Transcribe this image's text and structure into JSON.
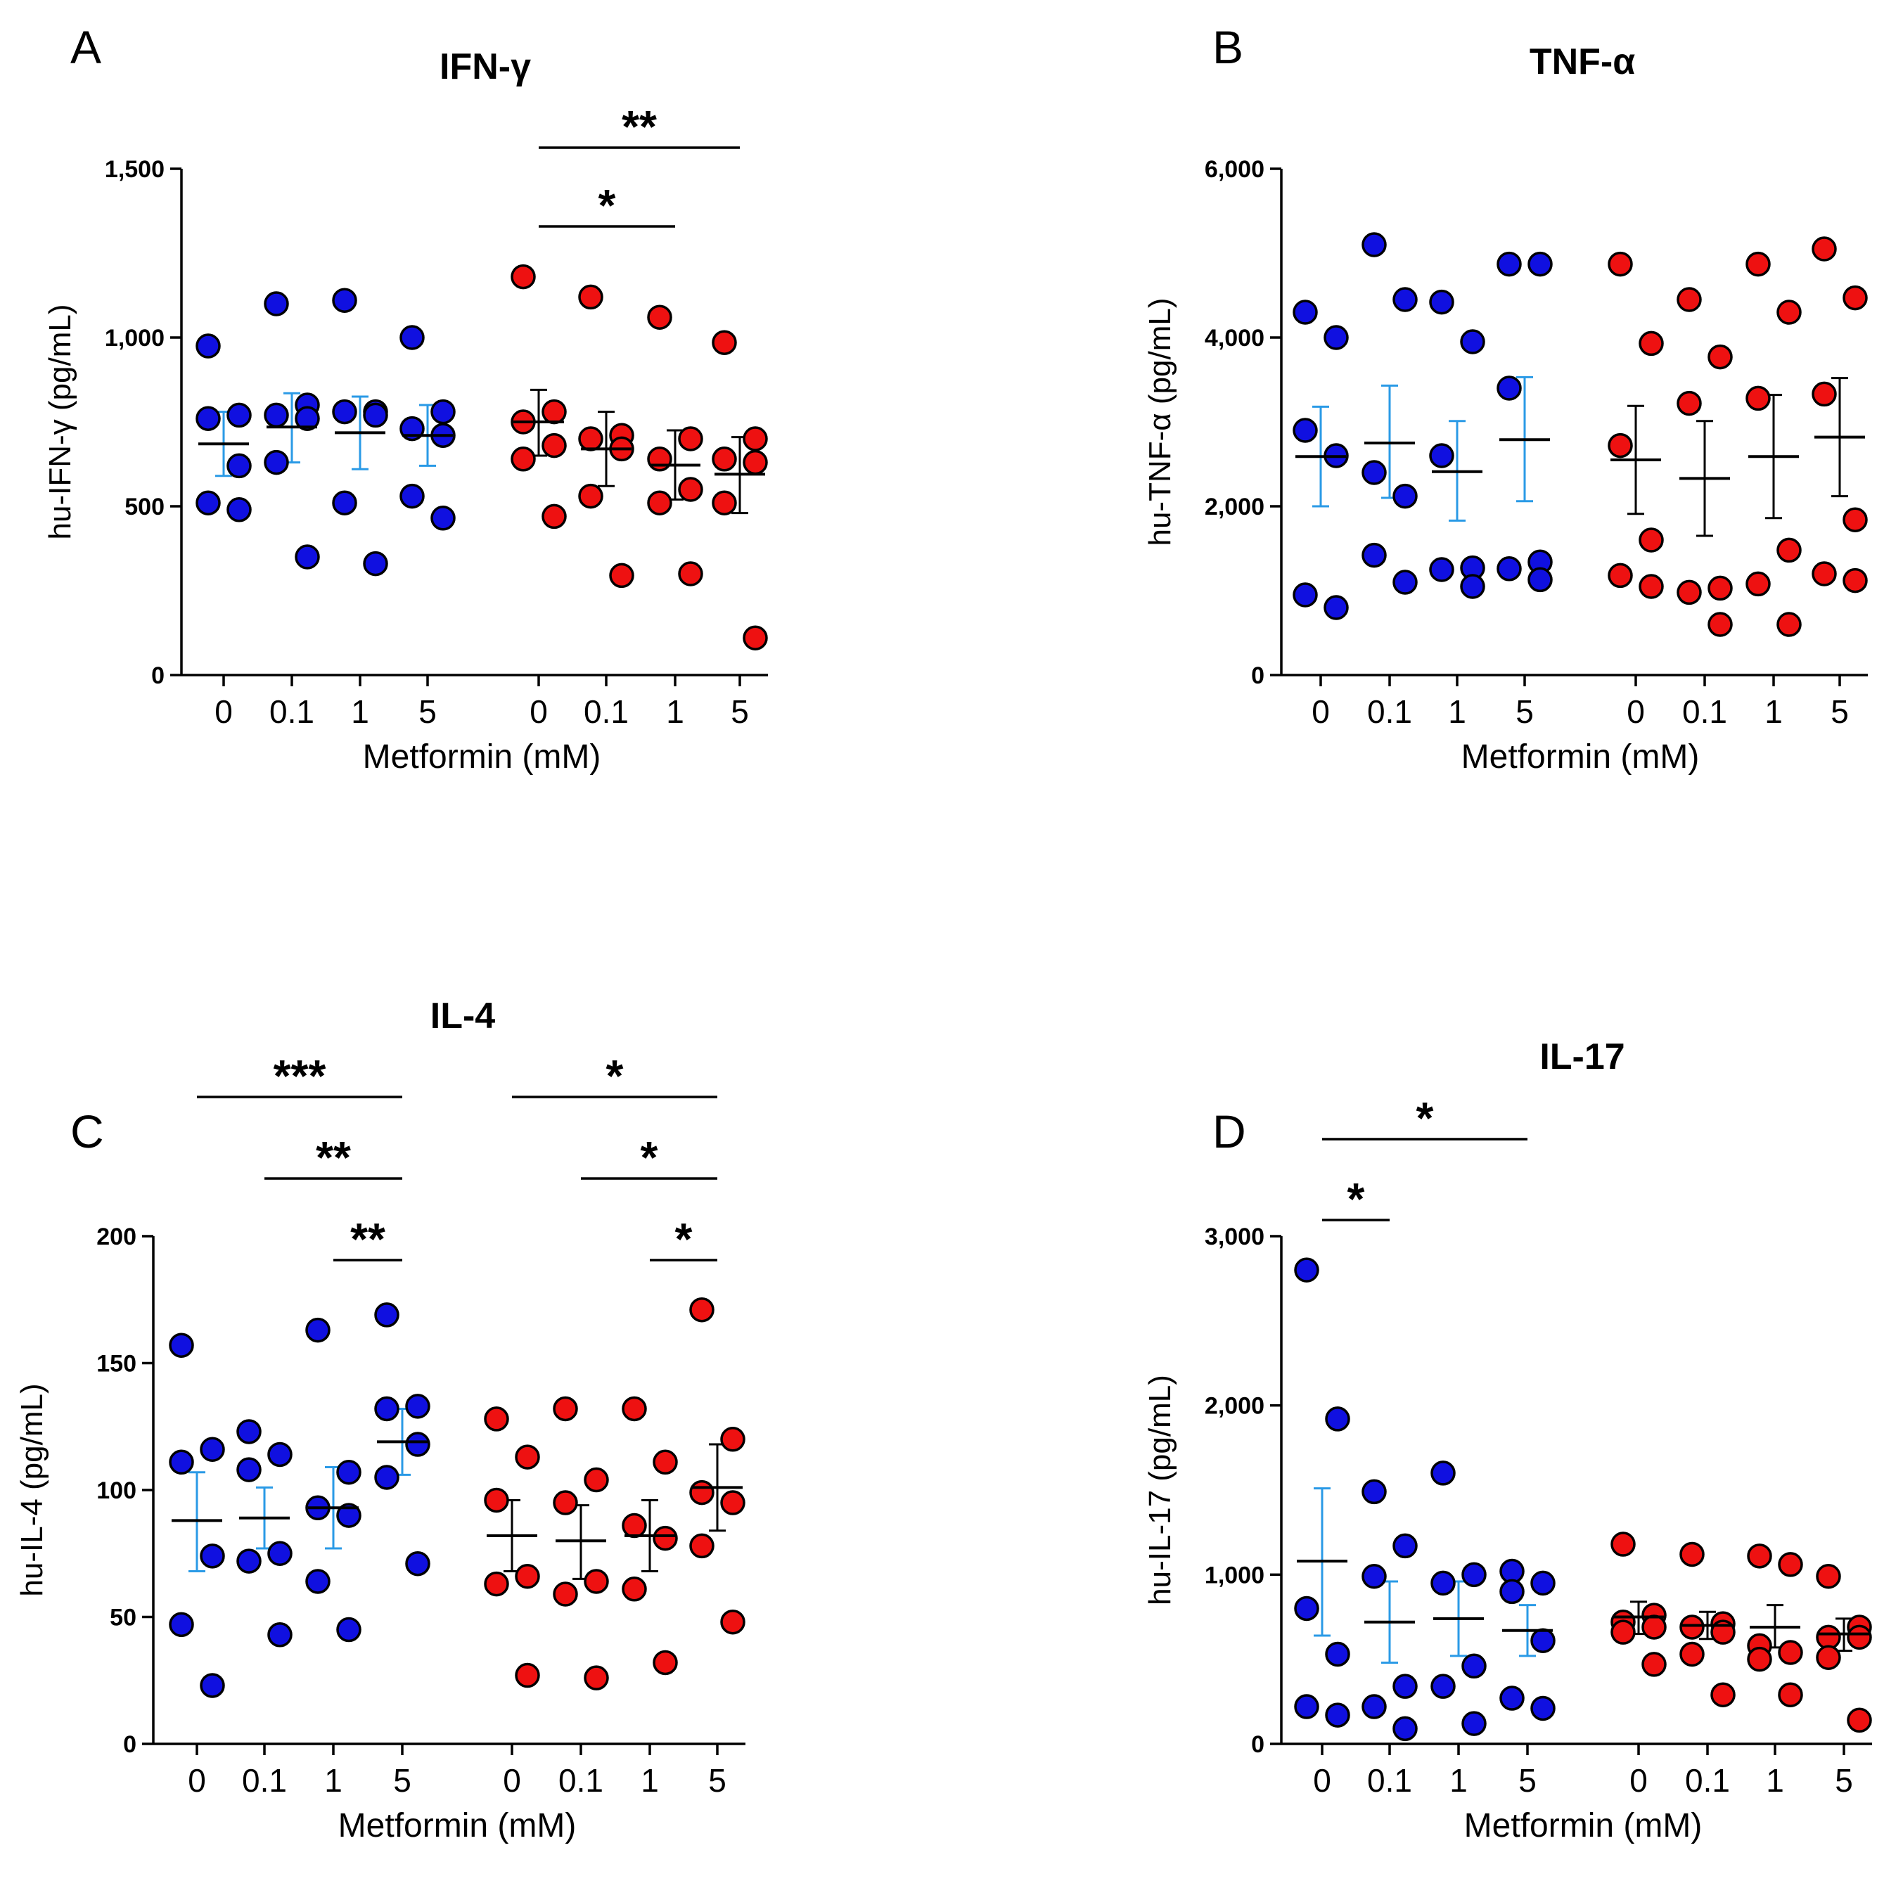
{
  "colors": {
    "group1": "#1010e0",
    "group2": "#ee1111",
    "sem_group1": "#2a9ae6",
    "sem_group2": "#000000",
    "dot_outline": "#000000"
  },
  "chart_data": [
    {
      "id": "A",
      "panel_label": "A",
      "type": "scatter",
      "title": "IFN-γ",
      "ylabel": "hu-IFN-γ (pg/mL)",
      "xlabel": "Metformin (mM)",
      "ylim": [
        0,
        1500
      ],
      "yticks": [
        0,
        500,
        1000,
        1500
      ],
      "ytick_labels": [
        "0",
        "500",
        "1,000",
        "1,500"
      ],
      "categories": [
        "0",
        "0.1",
        "1",
        "5",
        "0",
        "0.1",
        "1",
        "5"
      ],
      "groups": [
        {
          "points": [
            [
              975,
              770,
              760,
              620,
              510,
              490
            ],
            [
              1100,
              800,
              770,
              760,
              630,
              350
            ],
            [
              1110,
              780,
              780,
              770,
              510,
              330
            ],
            [
              1000,
              780,
              730,
              710,
              530,
              465
            ]
          ],
          "mean": [
            685,
            735,
            718,
            710
          ],
          "sem_low": [
            590,
            630,
            610,
            620
          ],
          "sem_high": [
            780,
            835,
            825,
            800
          ]
        },
        {
          "points": [
            [
              1180,
              780,
              750,
              680,
              640,
              470
            ],
            [
              1120,
              710,
              700,
              670,
              530,
              295
            ],
            [
              1060,
              700,
              640,
              550,
              510,
              300
            ],
            [
              985,
              700,
              640,
              630,
              510,
              110
            ]
          ],
          "mean": [
            750,
            670,
            622,
            595
          ],
          "sem_low": [
            650,
            560,
            520,
            480
          ],
          "sem_high": [
            845,
            780,
            725,
            705
          ]
        }
      ],
      "significance": [
        {
          "group": 2,
          "from": 0,
          "to": 3,
          "label": "**",
          "level": 0
        },
        {
          "group": 2,
          "from": 0,
          "to": 2,
          "label": "*",
          "level": 1
        }
      ]
    },
    {
      "id": "B",
      "panel_label": "B",
      "type": "scatter",
      "title": "TNF-α",
      "ylabel": "hu-TNF-α (pg/mL)",
      "xlabel": "Metformin (mM)",
      "ylim": [
        0,
        6000
      ],
      "yticks": [
        0,
        2000,
        4000,
        6000
      ],
      "ytick_labels": [
        "0",
        "2,000",
        "4,000",
        "6,000"
      ],
      "categories": [
        "0",
        "0.1",
        "1",
        "5",
        "0",
        "0.1",
        "1",
        "5"
      ],
      "groups": [
        {
          "points": [
            [
              4300,
              4000,
              2900,
              2600,
              950,
              800
            ],
            [
              5100,
              4450,
              2400,
              2120,
              1420,
              1100
            ],
            [
              4420,
              3950,
              2600,
              1270,
              1250,
              1050
            ],
            [
              4870,
              4870,
              3400,
              1340,
              1260,
              1130
            ]
          ],
          "mean": [
            2590,
            2750,
            2410,
            2790
          ],
          "sem_low": [
            2000,
            2100,
            1830,
            2060
          ],
          "sem_high": [
            3180,
            3430,
            3010,
            3530
          ]
        },
        {
          "points": [
            [
              4870,
              3930,
              2720,
              1600,
              1180,
              1050
            ],
            [
              4450,
              3770,
              3220,
              1030,
              980,
              600
            ],
            [
              4870,
              4300,
              3280,
              1480,
              1080,
              600
            ],
            [
              5050,
              4470,
              3330,
              1840,
              1200,
              1120
            ]
          ],
          "mean": [
            2550,
            2330,
            2590,
            2820
          ],
          "sem_low": [
            1910,
            1650,
            1860,
            2120
          ],
          "sem_high": [
            3190,
            3010,
            3320,
            3520
          ]
        }
      ],
      "significance": []
    },
    {
      "id": "C",
      "panel_label": "C",
      "type": "scatter",
      "title": "IL-4",
      "ylabel": "hu-IL-4 (pg/mL)",
      "xlabel": "Metformin (mM)",
      "ylim": [
        0,
        200
      ],
      "yticks": [
        0,
        50,
        100,
        150,
        200
      ],
      "ytick_labels": [
        "0",
        "50",
        "100",
        "150",
        "200"
      ],
      "categories": [
        "0",
        "0.1",
        "1",
        "5",
        "0",
        "0.1",
        "1",
        "5"
      ],
      "groups": [
        {
          "points": [
            [
              157,
              116,
              111,
              74,
              47,
              23
            ],
            [
              123,
              114,
              108,
              75,
              72,
              43
            ],
            [
              163,
              107,
              93,
              90,
              64,
              45
            ],
            [
              169,
              133,
              132,
              118,
              105,
              71
            ]
          ],
          "mean": [
            88,
            89,
            93,
            119
          ],
          "sem_low": [
            68,
            77,
            77,
            106
          ],
          "sem_high": [
            107,
            101,
            109,
            132
          ]
        },
        {
          "points": [
            [
              128,
              113,
              96,
              66,
              63,
              27
            ],
            [
              132,
              104,
              95,
              64,
              59,
              26
            ],
            [
              132,
              111,
              86,
              81,
              61,
              32
            ],
            [
              171,
              120,
              99,
              95,
              78,
              48
            ]
          ],
          "mean": [
            82,
            80,
            82,
            101
          ],
          "sem_low": [
            68,
            65,
            68,
            84
          ],
          "sem_high": [
            96,
            94,
            96,
            118
          ]
        }
      ],
      "significance": [
        {
          "group": 1,
          "from": 0,
          "to": 3,
          "label": "***",
          "level": 2
        },
        {
          "group": 1,
          "from": 1,
          "to": 3,
          "label": "**",
          "level": 1
        },
        {
          "group": 1,
          "from": 2,
          "to": 3,
          "label": "**",
          "level": 0
        },
        {
          "group": 2,
          "from": 0,
          "to": 3,
          "label": "*",
          "level": 2
        },
        {
          "group": 2,
          "from": 1,
          "to": 3,
          "label": "*",
          "level": 1
        },
        {
          "group": 2,
          "from": 2,
          "to": 3,
          "label": "*",
          "level": 0
        }
      ]
    },
    {
      "id": "D",
      "panel_label": "D",
      "type": "scatter",
      "title": "IL-17",
      "ylabel": "hu-IL-17 (pg/mL)",
      "xlabel": "Metformin (mM)",
      "ylim": [
        0,
        3000
      ],
      "yticks": [
        0,
        1000,
        2000,
        3000
      ],
      "ytick_labels": [
        "0",
        "1,000",
        "2,000",
        "3,000"
      ],
      "categories": [
        "0",
        "0.1",
        "1",
        "5",
        "0",
        "0.1",
        "1",
        "5"
      ],
      "groups": [
        {
          "points": [
            [
              2800,
              1920,
              800,
              530,
              220,
              170
            ],
            [
              1490,
              1170,
              990,
              340,
              220,
              90
            ],
            [
              1600,
              1000,
              950,
              460,
              340,
              120
            ],
            [
              1020,
              950,
              900,
              610,
              270,
              210
            ]
          ],
          "mean": [
            1080,
            720,
            740,
            670
          ],
          "sem_low": [
            640,
            480,
            520,
            520
          ],
          "sem_high": [
            1510,
            960,
            960,
            820
          ]
        },
        {
          "points": [
            [
              1180,
              760,
              720,
              690,
              660,
              470
            ],
            [
              1120,
              710,
              690,
              660,
              530,
              290
            ],
            [
              1110,
              1060,
              580,
              540,
              500,
              290
            ],
            [
              990,
              690,
              630,
              630,
              510,
              140
            ]
          ],
          "mean": [
            750,
            700,
            690,
            650
          ],
          "sem_low": [
            650,
            620,
            570,
            550
          ],
          "sem_high": [
            840,
            780,
            820,
            740
          ]
        }
      ],
      "significance": [
        {
          "group": 1,
          "from": 0,
          "to": 3,
          "label": "*",
          "level": 1
        },
        {
          "group": 1,
          "from": 0,
          "to": 1,
          "label": "*",
          "level": 0
        }
      ]
    }
  ]
}
